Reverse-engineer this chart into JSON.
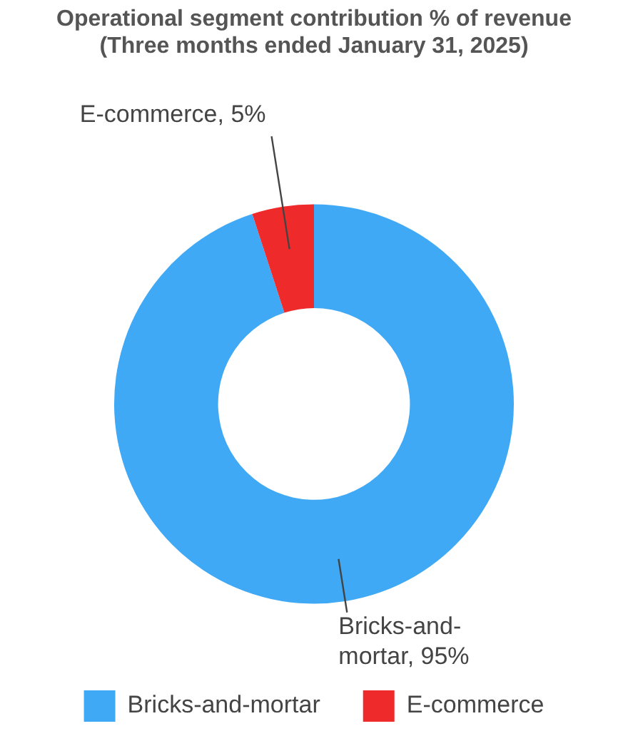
{
  "chart_data": {
    "type": "donut",
    "title": "Operational segment contribution % of revenue\n(Three months ended January 31, 2025)",
    "categories": [
      "Bricks-and-mortar",
      "E-commerce"
    ],
    "values": [
      95,
      5
    ],
    "colors": [
      "#3fa9f5",
      "#ee2a2a"
    ],
    "value_labels": [
      "Bricks-and-mortar, 95%",
      "E-commerce, 5%"
    ],
    "legend": "bottom"
  }
}
